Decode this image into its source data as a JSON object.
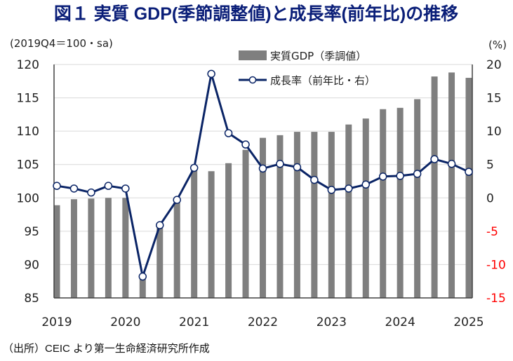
{
  "colors": {
    "title": "#0a1e78",
    "bar": "#7f7f7f",
    "line": "#0a2466",
    "negative_tick": "#ff0000",
    "grid": "#d9d9d9"
  },
  "chart_data": {
    "type": "bar+line",
    "title": "図１ 実質 GDP(季節調整値)と成長率(前年比)の推移",
    "left_axis_label": "(2019Q4＝100・sa)",
    "right_axis_label": "(%)",
    "source": "（出所）CEIC より第一生命経済研究所作成",
    "left_ylim": [
      85,
      120
    ],
    "right_ylim": [
      -15,
      20
    ],
    "left_ticks": [
      "85",
      "90",
      "95",
      "100",
      "105",
      "110",
      "115",
      "120"
    ],
    "right_ticks": [
      "-15",
      "-10",
      "-5",
      "0",
      "5",
      "10",
      "15",
      "20"
    ],
    "x_tick_labels": [
      "2019",
      "2020",
      "2021",
      "2022",
      "2023",
      "2024",
      "2025"
    ],
    "grid": true,
    "legend_position": "top-center",
    "categories": [
      "2019Q1",
      "2019Q2",
      "2019Q3",
      "2019Q4",
      "2020Q1",
      "2020Q2",
      "2020Q3",
      "2020Q4",
      "2021Q1",
      "2021Q2",
      "2021Q3",
      "2021Q4",
      "2022Q1",
      "2022Q2",
      "2022Q3",
      "2022Q4",
      "2023Q1",
      "2023Q2",
      "2023Q3",
      "2023Q4",
      "2024Q1",
      "2024Q2",
      "2024Q3",
      "2024Q4",
      "2025Q1"
    ],
    "series": [
      {
        "name": "実質GDP（季調値）",
        "type": "bar",
        "axis": "left",
        "values": [
          98.9,
          99.8,
          99.9,
          100.0,
          100.0,
          88.4,
          95.9,
          99.7,
          104.3,
          104.0,
          105.2,
          107.2,
          109.0,
          109.4,
          109.9,
          109.9,
          109.9,
          111.0,
          111.9,
          113.3,
          113.5,
          114.8,
          118.2,
          118.8,
          118.0
        ]
      },
      {
        "name": "成長率（前年比・右）",
        "type": "line",
        "axis": "right",
        "values": [
          1.8,
          1.4,
          0.8,
          1.8,
          1.4,
          -11.8,
          -4.1,
          -0.3,
          4.5,
          18.6,
          9.7,
          8.0,
          4.4,
          5.1,
          4.6,
          2.7,
          1.2,
          1.4,
          2.0,
          3.2,
          3.3,
          3.6,
          5.8,
          5.1,
          3.9
        ]
      }
    ]
  }
}
